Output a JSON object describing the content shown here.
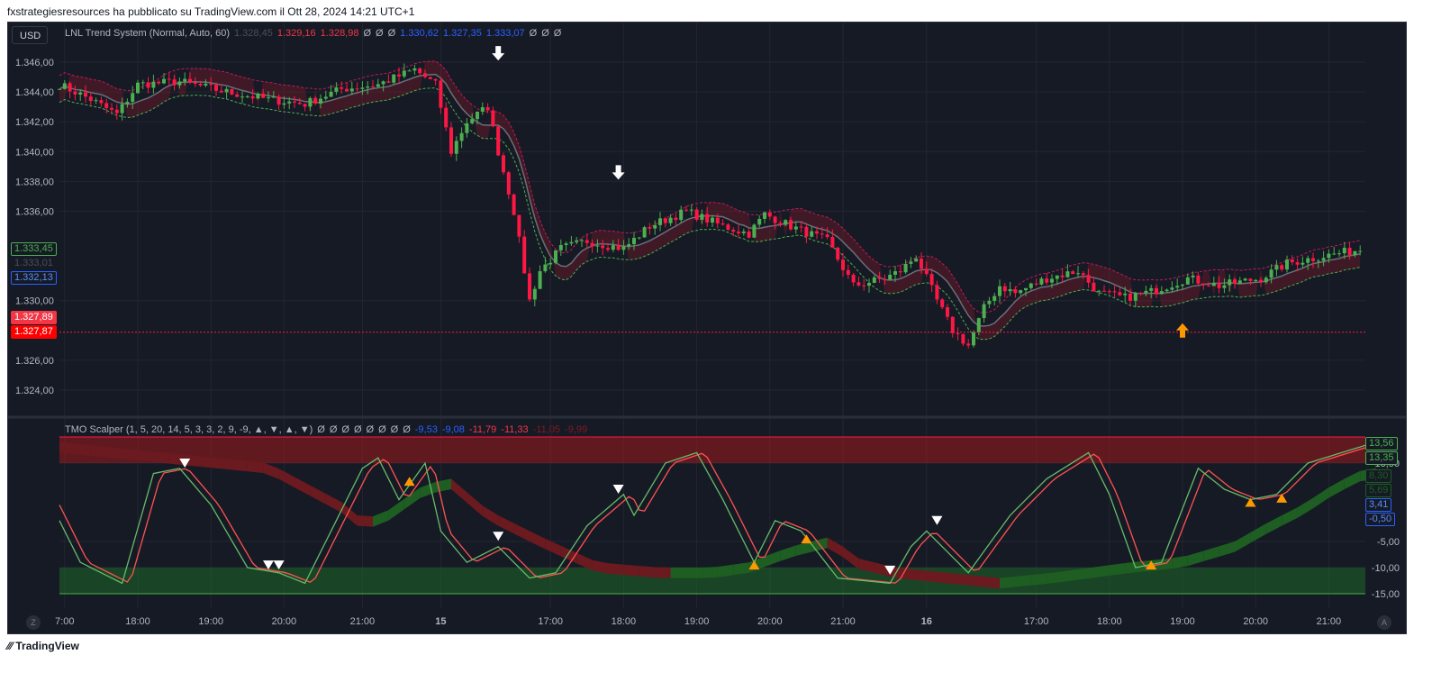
{
  "header": {
    "published": "fxstrategiesresources ha pubblicato su TradingView.com il Ott 28, 2024 14:21 UTC+1"
  },
  "currency_button": "USD",
  "footer": {
    "brand": "TradingView",
    "logo_icon": "tradingview-logo-icon"
  },
  "main_legend": {
    "name": "LNL Trend System (Normal, Auto, 60)",
    "values": [
      {
        "t": "1.328,45",
        "c": "#4a4e59"
      },
      {
        "t": "1.329,16",
        "c": "#f23645"
      },
      {
        "t": "1.328,98",
        "c": "#f23645"
      },
      {
        "t": "Ø",
        "c": "#b2b5be"
      },
      {
        "t": "Ø",
        "c": "#b2b5be"
      },
      {
        "t": "Ø",
        "c": "#b2b5be"
      },
      {
        "t": "1.330,62",
        "c": "#2962ff"
      },
      {
        "t": "1.327,35",
        "c": "#2962ff"
      },
      {
        "t": "1.333,07",
        "c": "#2962ff"
      },
      {
        "t": "Ø",
        "c": "#b2b5be"
      },
      {
        "t": "Ø",
        "c": "#b2b5be"
      },
      {
        "t": "Ø",
        "c": "#b2b5be"
      }
    ]
  },
  "osc_legend": {
    "name": "TMO Scalper (1, 5, 20, 14, 5, 3, 3, 2, 9, -9, ▲, ▼, ▲, ▼)",
    "values": [
      {
        "t": "Ø",
        "c": "#b2b5be"
      },
      {
        "t": "Ø",
        "c": "#b2b5be"
      },
      {
        "t": "Ø",
        "c": "#b2b5be"
      },
      {
        "t": "Ø",
        "c": "#b2b5be"
      },
      {
        "t": "Ø",
        "c": "#b2b5be"
      },
      {
        "t": "Ø",
        "c": "#b2b5be"
      },
      {
        "t": "Ø",
        "c": "#b2b5be"
      },
      {
        "t": "Ø",
        "c": "#b2b5be"
      },
      {
        "t": "-9,53",
        "c": "#2962ff"
      },
      {
        "t": "-9,08",
        "c": "#2962ff"
      },
      {
        "t": "-11,79",
        "c": "#f23645"
      },
      {
        "t": "-11,33",
        "c": "#f23645"
      },
      {
        "t": "-11,05",
        "c": "#801922"
      },
      {
        "t": "-9,99",
        "c": "#801922"
      }
    ]
  },
  "price_tags": [
    {
      "t": "1.333,45",
      "price": 1.33345,
      "fg": "#4caf50",
      "bg": "#161a25",
      "bd": "#4caf50"
    },
    {
      "t": "1.333,01",
      "price": 1.33301,
      "fg": "#4a4e59",
      "bg": "#161a25",
      "bd": "#161a25"
    },
    {
      "t": "1.332,13",
      "price": 1.33213,
      "fg": "#5b8cff",
      "bg": "#161a25",
      "bd": "#2962ff"
    },
    {
      "t": "1.327,89",
      "price": 1.32789,
      "fg": "#fff",
      "bg": "#f23645",
      "bd": "#f23645"
    },
    {
      "t": "1.327,87",
      "price": 1.32787,
      "fg": "#fff",
      "bg": "#ff0000",
      "bd": "#ff0000"
    }
  ],
  "osc_tags": [
    {
      "t": "13,56",
      "v": 13.56,
      "fg": "#4caf50",
      "bd": "#4caf50"
    },
    {
      "t": "13,35",
      "v": 13.35,
      "fg": "#4caf50",
      "bd": "#4caf50"
    },
    {
      "t": "8,30",
      "v": 8.3,
      "fg": "#1b5e20",
      "bd": "#1b5e20"
    },
    {
      "t": "5,69",
      "v": 5.69,
      "fg": "#1b5e20",
      "bd": "#1b5e20"
    },
    {
      "t": "3,41",
      "v": 3.41,
      "fg": "#5b8cff",
      "bd": "#2962ff"
    },
    {
      "t": "-0,50",
      "v": -0.5,
      "fg": "#5b8cff",
      "bd": "#2962ff"
    }
  ],
  "chart_data": [
    {
      "type": "candlestick",
      "title": "LNL Trend System",
      "bars": 250,
      "yticks": [
        "1.346,00",
        "1.344,00",
        "1.342,00",
        "1.340,00",
        "1.338,00",
        "1.336,00",
        "1.330,00",
        "1.326,00",
        "1.324,00"
      ],
      "ytick_values": [
        1.346,
        1.344,
        1.342,
        1.34,
        1.338,
        1.336,
        1.33,
        1.326,
        1.324
      ],
      "ylim": [
        1.3235,
        1.3475
      ],
      "close_path": [
        [
          0,
          1.3445
        ],
        [
          6,
          1.3435
        ],
        [
          11,
          1.3425
        ],
        [
          15,
          1.3445
        ],
        [
          23,
          1.3447
        ],
        [
          32,
          1.344
        ],
        [
          40,
          1.3435
        ],
        [
          47,
          1.3432
        ],
        [
          54,
          1.3442
        ],
        [
          61,
          1.3445
        ],
        [
          68,
          1.3455
        ],
        [
          72,
          1.3445
        ],
        [
          75,
          1.34
        ],
        [
          78,
          1.342
        ],
        [
          82,
          1.343
        ],
        [
          84,
          1.34
        ],
        [
          87,
          1.336
        ],
        [
          90,
          1.33
        ],
        [
          92,
          1.332
        ],
        [
          96,
          1.3335
        ],
        [
          101,
          1.334
        ],
        [
          108,
          1.3335
        ],
        [
          113,
          1.335
        ],
        [
          120,
          1.336
        ],
        [
          127,
          1.335
        ],
        [
          132,
          1.3345
        ],
        [
          135,
          1.3358
        ],
        [
          140,
          1.335
        ],
        [
          147,
          1.334
        ],
        [
          152,
          1.331
        ],
        [
          158,
          1.3315
        ],
        [
          161,
          1.332
        ],
        [
          164,
          1.333
        ],
        [
          168,
          1.33
        ],
        [
          171,
          1.328
        ],
        [
          174,
          1.327
        ],
        [
          177,
          1.3295
        ],
        [
          180,
          1.331
        ],
        [
          183,
          1.3305
        ],
        [
          189,
          1.3315
        ],
        [
          195,
          1.332
        ],
        [
          199,
          1.3305
        ],
        [
          204,
          1.3302
        ],
        [
          209,
          1.3306
        ],
        [
          216,
          1.3315
        ],
        [
          222,
          1.331
        ],
        [
          230,
          1.3315
        ],
        [
          235,
          1.3325
        ],
        [
          242,
          1.333
        ],
        [
          250,
          1.3335
        ]
      ],
      "support_line": 1.32788,
      "signals": [
        {
          "bar": 84,
          "dir": "down",
          "color": "#ffffff",
          "price": 1.3466
        },
        {
          "bar": 107,
          "dir": "down",
          "color": "#ffffff",
          "price": 1.3386
        },
        {
          "bar": 215,
          "dir": "up",
          "color": "#ff9800",
          "price": 1.328
        }
      ]
    },
    {
      "type": "line",
      "title": "TMO Scalper",
      "ylim": [
        -16.5,
        15.5
      ],
      "yticks": [
        "10,00",
        "-5,00",
        "-10,00",
        "-15,00"
      ],
      "ytick_values": [
        10,
        -5,
        -10,
        -15
      ],
      "ob_zone": [
        10,
        15
      ],
      "os_zone": [
        -10,
        -15
      ],
      "fast": [
        [
          0,
          -1
        ],
        [
          4,
          -9
        ],
        [
          12,
          -13
        ],
        [
          18,
          8
        ],
        [
          23,
          9
        ],
        [
          29,
          2
        ],
        [
          36,
          -10
        ],
        [
          42,
          -11
        ],
        [
          47,
          -13
        ],
        [
          52,
          -3
        ],
        [
          58,
          9
        ],
        [
          61,
          11
        ],
        [
          65,
          3
        ],
        [
          70,
          10
        ],
        [
          73,
          -3
        ],
        [
          78,
          -9
        ],
        [
          84,
          -6
        ],
        [
          90,
          -12
        ],
        [
          95,
          -11
        ],
        [
          101,
          -2
        ],
        [
          108,
          4
        ],
        [
          110,
          0
        ],
        [
          116,
          10
        ],
        [
          122,
          12
        ],
        [
          127,
          3
        ],
        [
          133,
          -9
        ],
        [
          137,
          -1
        ],
        [
          142,
          -3
        ],
        [
          149,
          -12
        ],
        [
          159,
          -13
        ],
        [
          163,
          -6
        ],
        [
          166,
          -3
        ],
        [
          174,
          -11
        ],
        [
          182,
          0
        ],
        [
          189,
          7
        ],
        [
          197,
          12
        ],
        [
          201,
          4
        ],
        [
          206,
          -10
        ],
        [
          211,
          -9
        ],
        [
          218,
          9
        ],
        [
          223,
          5
        ],
        [
          228,
          3
        ],
        [
          233,
          4
        ],
        [
          239,
          10
        ],
        [
          250,
          13.4
        ]
      ],
      "slow": [
        [
          0,
          13
        ],
        [
          20,
          11
        ],
        [
          40,
          9
        ],
        [
          55,
          1
        ],
        [
          58,
          -2
        ],
        [
          63,
          0
        ],
        [
          70,
          5
        ],
        [
          75,
          6
        ],
        [
          82,
          0
        ],
        [
          92,
          -5
        ],
        [
          103,
          -10
        ],
        [
          115,
          -11
        ],
        [
          125,
          -11
        ],
        [
          132,
          -10
        ],
        [
          140,
          -7
        ],
        [
          148,
          -5
        ],
        [
          152,
          -9
        ],
        [
          160,
          -11
        ],
        [
          170,
          -12
        ],
        [
          180,
          -13
        ],
        [
          190,
          -12
        ],
        [
          205,
          -10
        ],
        [
          215,
          -9
        ],
        [
          225,
          -6
        ],
        [
          232,
          -2
        ],
        [
          238,
          1
        ],
        [
          244,
          5
        ],
        [
          250,
          8
        ]
      ],
      "markers": [
        {
          "bar": 24,
          "v": 10,
          "dir": "down",
          "color": "#ffffff"
        },
        {
          "bar": 40,
          "v": -9.5,
          "dir": "down",
          "color": "#ffffff"
        },
        {
          "bar": 42,
          "v": -9.5,
          "dir": "down",
          "color": "#ffffff"
        },
        {
          "bar": 67,
          "v": 6.5,
          "dir": "up",
          "color": "#ff9800"
        },
        {
          "bar": 84,
          "v": -4,
          "dir": "down",
          "color": "#ffffff"
        },
        {
          "bar": 107,
          "v": 5,
          "dir": "down",
          "color": "#ffffff"
        },
        {
          "bar": 133,
          "v": -9.5,
          "dir": "up",
          "color": "#ff9800"
        },
        {
          "bar": 143,
          "v": -4.5,
          "dir": "up",
          "color": "#ff9800"
        },
        {
          "bar": 159,
          "v": -10.5,
          "dir": "down",
          "color": "#ffffff"
        },
        {
          "bar": 168,
          "v": -1,
          "dir": "down",
          "color": "#ffffff"
        },
        {
          "bar": 209,
          "v": -9.5,
          "dir": "up",
          "color": "#ff9800"
        },
        {
          "bar": 228,
          "v": 2.5,
          "dir": "up",
          "color": "#ff9800"
        },
        {
          "bar": 234,
          "v": 3.3,
          "dir": "up",
          "color": "#ff9800"
        }
      ]
    },
    {
      "type": "time_axis",
      "labels": [
        "7:00",
        "18:00",
        "19:00",
        "20:00",
        "21:00",
        "15",
        "17:00",
        "18:00",
        "19:00",
        "20:00",
        "21:00",
        "16",
        "17:00",
        "18:00",
        "19:00",
        "20:00",
        "21:00"
      ],
      "label_bars": [
        1,
        15,
        29,
        43,
        58,
        73,
        94,
        108,
        122,
        136,
        150,
        166,
        187,
        201,
        215,
        229,
        243
      ],
      "bold": [
        "15",
        "16"
      ]
    }
  ]
}
